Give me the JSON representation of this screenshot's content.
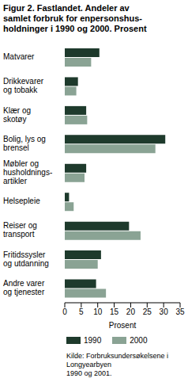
{
  "chart_data": {
    "type": "bar",
    "orientation": "horizontal",
    "title": "Figur 2. Fastlandet. Andeler av\nsamlet forbruk for enpersonshus-\nholdninger i 1990 og 2000. Prosent",
    "categories": [
      "Matvarer",
      "Drikkevarer\nog tobakk",
      "Klær og\nskotøy",
      "Bolig, lys og\nbrensel",
      "Møbler og\nhusholdnings-\nartikler",
      "Helsepleie",
      "Reiser og\ntransport",
      "Fritidssysler\nog utdanning",
      "Andre varer\nog tjenester"
    ],
    "series": [
      {
        "name": "1990",
        "color": "#1e3a2c",
        "values": [
          10.5,
          4,
          6.5,
          30.5,
          6.5,
          1.3,
          19.5,
          11,
          9.5
        ]
      },
      {
        "name": "2000",
        "color": "#8aa394",
        "values": [
          8,
          3.5,
          6.8,
          27.5,
          6,
          2.7,
          23,
          10,
          12.5
        ]
      }
    ],
    "x_label": "Prosent",
    "xlim": [
      0,
      35
    ],
    "xticks": [
      0,
      5,
      10,
      15,
      20,
      25,
      30,
      35
    ],
    "grid": false,
    "legend": "bottom",
    "source": "Kilde: Forbruksundersøkelsene i Longyearbyen\n1990 og 2001."
  }
}
